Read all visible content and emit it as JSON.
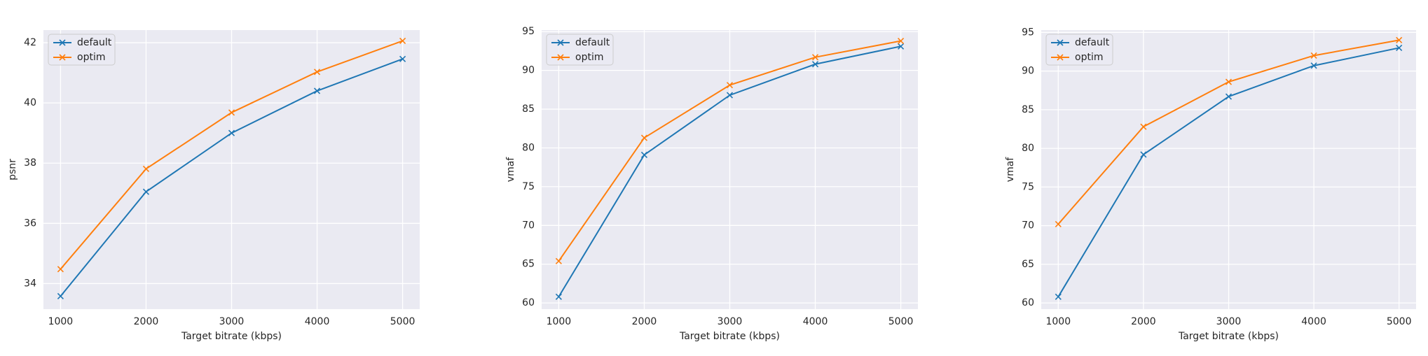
{
  "chart_data": [
    {
      "type": "line",
      "xlabel": "Target bitrate (kbps)",
      "ylabel": "psnr",
      "x": [
        1000,
        2000,
        3000,
        4000,
        5000
      ],
      "series": [
        {
          "name": "default",
          "color": "#1f77b4",
          "values": [
            33.58,
            37.05,
            39.0,
            40.4,
            41.46
          ]
        },
        {
          "name": "optim",
          "color": "#ff7f0e",
          "values": [
            34.48,
            37.81,
            39.68,
            41.03,
            42.06
          ]
        }
      ],
      "xlim": [
        800,
        5200
      ],
      "ylim": [
        33.15,
        42.42
      ],
      "xticks": [
        1000,
        2000,
        3000,
        4000,
        5000
      ],
      "yticks": [
        34,
        36,
        38,
        40,
        42
      ],
      "grid": true,
      "legend": "upper left"
    },
    {
      "type": "line",
      "xlabel": "Target bitrate (kbps)",
      "ylabel": "vmaf",
      "x": [
        1000,
        2000,
        3000,
        4000,
        5000
      ],
      "series": [
        {
          "name": "default",
          "color": "#1f77b4",
          "values": [
            60.8,
            79.1,
            86.8,
            90.8,
            93.1
          ]
        },
        {
          "name": "optim",
          "color": "#ff7f0e",
          "values": [
            65.4,
            81.3,
            88.1,
            91.7,
            93.8
          ]
        }
      ],
      "xlim": [
        800,
        5200
      ],
      "ylim": [
        59.2,
        95.2
      ],
      "xticks": [
        1000,
        2000,
        3000,
        4000,
        5000
      ],
      "yticks": [
        60,
        65,
        70,
        75,
        80,
        85,
        90,
        95
      ],
      "grid": true,
      "legend": "upper left"
    },
    {
      "type": "line",
      "xlabel": "Target bitrate (kbps)",
      "ylabel": "vmaf",
      "x": [
        1000,
        2000,
        3000,
        4000,
        5000
      ],
      "series": [
        {
          "name": "default",
          "color": "#1f77b4",
          "values": [
            60.8,
            79.2,
            86.7,
            90.7,
            93.0
          ]
        },
        {
          "name": "optim",
          "color": "#ff7f0e",
          "values": [
            70.2,
            82.8,
            88.6,
            92.0,
            94.0
          ]
        }
      ],
      "xlim": [
        800,
        5200
      ],
      "ylim": [
        59.2,
        95.3
      ],
      "xticks": [
        1000,
        2000,
        3000,
        4000,
        5000
      ],
      "yticks": [
        60,
        65,
        70,
        75,
        80,
        85,
        90,
        95
      ],
      "grid": true,
      "legend": "upper left"
    }
  ]
}
